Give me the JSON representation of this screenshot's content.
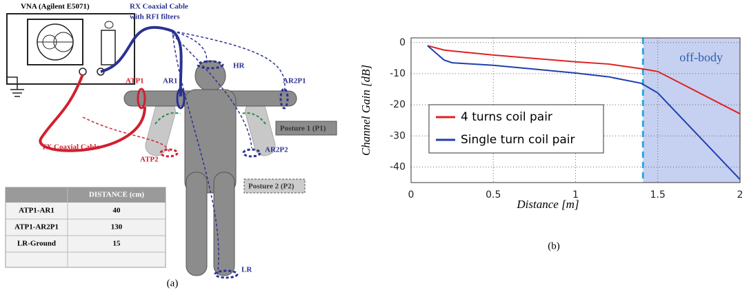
{
  "panel_labels": [
    "(a)",
    "(b)"
  ],
  "diagram": {
    "vna": "VNA (Agilent E5071)",
    "rx_cable": [
      "RX Coaxial Cable",
      "with RFI filters"
    ],
    "tx_cable": "TX Coaxial Cable",
    "atp1": "ATP1",
    "ar1": "AR1",
    "hr": "HR",
    "ar2p1": "AR2P1",
    "posture1": "Posture 1 (P1)",
    "atp2": "ATP2",
    "ar2p2": "AR2P2",
    "posture2": "Posture 2 (P2)",
    "lr": "LR",
    "table": {
      "header": "DISTANCE (cm)",
      "rows": [
        [
          "ATP1-AR1",
          "40"
        ],
        [
          "ATP1-AR2P1",
          "130"
        ],
        [
          "LR-Ground",
          "15"
        ]
      ]
    }
  },
  "chart_data": {
    "type": "line",
    "x_label": "Distance [m]",
    "y_label": "Channel Gain [dB]",
    "x": [
      0.1,
      0.2,
      0.25,
      0.5,
      1,
      1.2,
      1.4,
      1.5,
      2
    ],
    "series": [
      {
        "name": "4 turns coil pair",
        "color": "#e02020",
        "values": [
          -1,
          -2.4,
          -2.7,
          -4,
          -6.2,
          -6.9,
          -8.4,
          -9.3,
          -22.9
        ]
      },
      {
        "name": "Single turn coil pair",
        "color": "#1f3fb0",
        "values": [
          -1,
          -5.6,
          -6.5,
          -7.3,
          -9.8,
          -11,
          -13.1,
          -16.2,
          -44
        ]
      }
    ],
    "xlim": [
      0,
      2
    ],
    "ylim": [
      -45,
      1.5
    ],
    "xticks": [
      0,
      0.5,
      1,
      1.5,
      2
    ],
    "yticks": [
      0,
      -10,
      -20,
      -30,
      -40
    ],
    "grid": true,
    "legend": "center-left",
    "region": {
      "label": "off-body",
      "from": 1.41,
      "to": 2,
      "color": "#c6d0f0",
      "edge_color": "#2aa8e0"
    }
  }
}
